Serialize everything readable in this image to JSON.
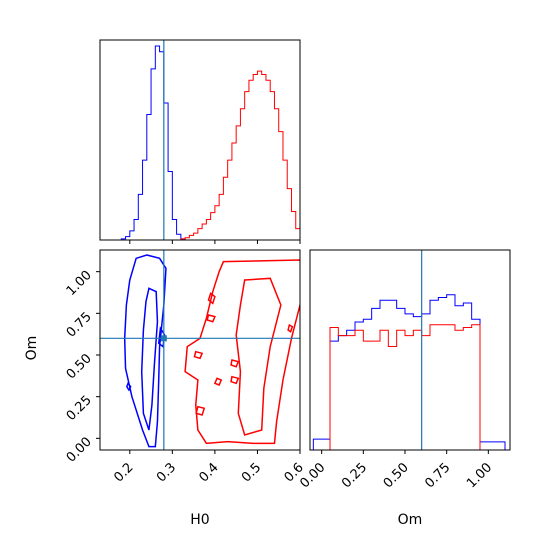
{
  "chart_data": {
    "type": "corner",
    "parameters": [
      "H0",
      "Om"
    ],
    "truth": {
      "H0": 0.28,
      "Om": 0.6
    },
    "truth_color": "#1f77b4",
    "series": [
      {
        "color": "#0000ff"
      },
      {
        "color": "#ff0000"
      }
    ],
    "axes": {
      "H0": {
        "label": "H0",
        "range": [
          0.13,
          0.6
        ],
        "ticks": [
          0.2,
          0.3,
          0.4,
          0.5,
          0.6
        ],
        "tick_labels": [
          "0.2",
          "0.3",
          "0.4",
          "0.5",
          "0.6"
        ]
      },
      "Om": {
        "label": "Om",
        "range": [
          -0.07,
          1.13
        ],
        "ticks": [
          0.0,
          0.25,
          0.5,
          0.75,
          1.0
        ],
        "tick_labels": [
          "0.00",
          "0.25",
          "0.50",
          "0.75",
          "1.00"
        ]
      }
    },
    "hist_H0": {
      "bin_edges": [
        0.18,
        0.19,
        0.2,
        0.21,
        0.22,
        0.23,
        0.24,
        0.25,
        0.26,
        0.27,
        0.28,
        0.29,
        0.3,
        0.31,
        0.32,
        0.33,
        0.34,
        0.35,
        0.36,
        0.37,
        0.38,
        0.39,
        0.4,
        0.41,
        0.42,
        0.43,
        0.44,
        0.45,
        0.46,
        0.47,
        0.48,
        0.49,
        0.5,
        0.51,
        0.52,
        0.53,
        0.54,
        0.55,
        0.56,
        0.57,
        0.58,
        0.59,
        0.6
      ],
      "series": [
        {
          "counts": [
            1,
            3,
            8,
            18,
            40,
            70,
            110,
            150,
            170,
            165,
            120,
            60,
            18,
            5,
            1,
            0,
            0,
            0,
            0,
            0,
            0,
            0,
            0,
            0,
            0,
            0,
            0,
            0,
            0,
            0,
            0,
            0,
            0,
            0,
            0,
            0,
            0,
            0,
            0,
            0,
            0,
            0
          ]
        },
        {
          "counts": [
            0,
            0,
            0,
            0,
            0,
            0,
            0,
            0,
            0,
            0,
            0,
            0,
            0,
            0,
            1,
            2,
            4,
            6,
            10,
            14,
            18,
            24,
            30,
            40,
            55,
            70,
            85,
            100,
            115,
            130,
            140,
            145,
            148,
            145,
            140,
            130,
            115,
            95,
            70,
            45,
            25,
            10
          ]
        }
      ]
    },
    "hist_Om": {
      "bin_edges": [
        -0.05,
        0.0,
        0.05,
        0.1,
        0.15,
        0.2,
        0.25,
        0.3,
        0.35,
        0.4,
        0.45,
        0.5,
        0.55,
        0.6,
        0.65,
        0.7,
        0.75,
        0.8,
        0.85,
        0.9,
        0.95,
        1.0,
        1.05,
        1.1
      ],
      "series": [
        {
          "counts": [
            4,
            4,
            40,
            42,
            44,
            47,
            48,
            52,
            55,
            55,
            52,
            50,
            49,
            50,
            55,
            56,
            57,
            53,
            54,
            48,
            3,
            3,
            3
          ]
        },
        {
          "counts": [
            0,
            0,
            45,
            42,
            42,
            44,
            40,
            40,
            44,
            38,
            44,
            42,
            44,
            42,
            46,
            46,
            46,
            44,
            45,
            46,
            0,
            0,
            0
          ]
        }
      ]
    }
  }
}
